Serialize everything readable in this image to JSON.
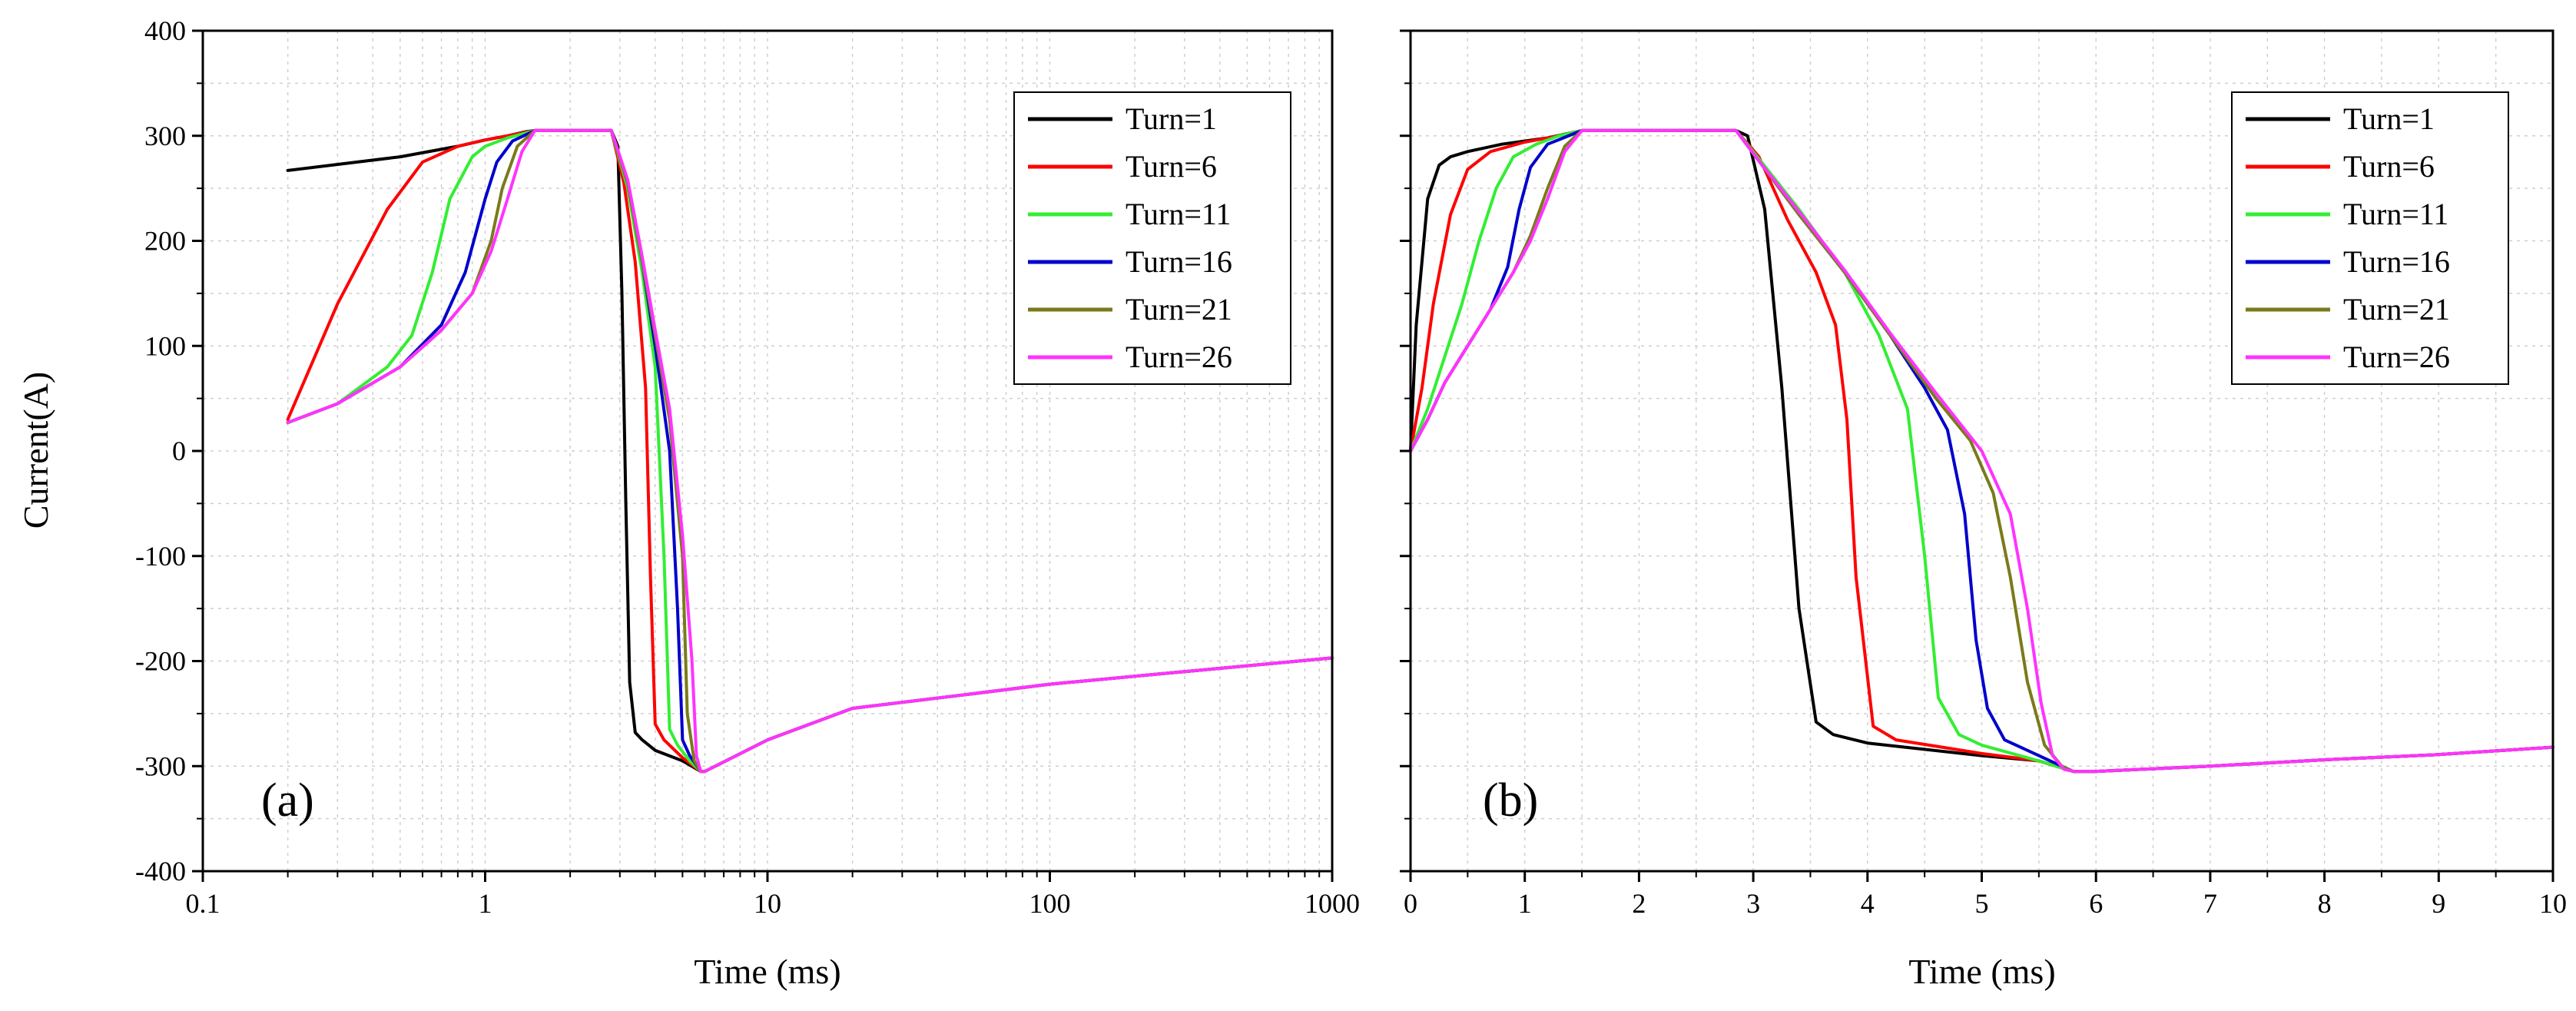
{
  "figure": {
    "ylabel": "Current(A)",
    "legend": [
      "Turn=1",
      "Turn=6",
      "Turn=11",
      "Turn=16",
      "Turn=21",
      "Turn=26"
    ],
    "colors": {
      "Turn=1": "#000000",
      "Turn=6": "#ff0000",
      "Turn=11": "#33ee33",
      "Turn=16": "#0000cc",
      "Turn=21": "#7a7a1a",
      "Turn=26": "#ff33ff"
    }
  },
  "chart_data": [
    {
      "type": "line",
      "panel_label": "(a)",
      "xlabel": "Time (ms)",
      "ylabel": "Current(A)",
      "xscale": "log",
      "xlim": [
        0.1,
        1000
      ],
      "ylim": [
        -400,
        400
      ],
      "xticks": [
        0.1,
        1,
        10,
        100,
        1000
      ],
      "xtick_labels": [
        "0.1",
        "1",
        "10",
        "100",
        "1000"
      ],
      "yticks": [
        400,
        300,
        200,
        100,
        0,
        -100,
        -200,
        -300,
        -400
      ],
      "ytick_labels": [
        "400",
        "300",
        "200",
        "100",
        "0",
        "-100",
        "-200",
        "-300",
        "-400"
      ],
      "grid": true,
      "legend_position": "top-right",
      "series": [
        {
          "name": "Turn=1",
          "color": "#000000",
          "x": [
            0.2,
            0.5,
            0.8,
            1,
            1.2,
            1.4,
            1.5,
            2,
            2.8,
            2.95,
            3.05,
            3.15,
            3.25,
            3.4,
            3.6,
            4,
            5,
            5.8,
            6,
            10,
            20,
            50,
            100,
            300,
            1000
          ],
          "y": [
            267,
            280,
            290,
            296,
            300,
            304,
            305,
            305,
            305,
            290,
            150,
            -50,
            -220,
            -268,
            -275,
            -285,
            -295,
            -305,
            -305,
            -275,
            -245,
            -232,
            -222,
            -210,
            -197
          ]
        },
        {
          "name": "Turn=6",
          "color": "#ff0000",
          "x": [
            0.2,
            0.3,
            0.45,
            0.6,
            0.8,
            1,
            1.2,
            1.5,
            2,
            2.8,
            3.1,
            3.4,
            3.7,
            3.85,
            4,
            4.3,
            5,
            5.8,
            6,
            10,
            20,
            50,
            100,
            300,
            1000
          ],
          "y": [
            30,
            140,
            230,
            275,
            290,
            296,
            300,
            305,
            305,
            305,
            255,
            180,
            60,
            -120,
            -260,
            -275,
            -292,
            -305,
            -305,
            -275,
            -245,
            -232,
            -222,
            -210,
            -197
          ]
        },
        {
          "name": "Turn=11",
          "color": "#33ee33",
          "x": [
            0.2,
            0.3,
            0.45,
            0.55,
            0.65,
            0.75,
            0.9,
            1,
            1.2,
            1.5,
            2,
            2.8,
            3.2,
            3.6,
            4,
            4.3,
            4.5,
            4.8,
            5.3,
            5.8,
            6,
            10,
            20,
            50,
            100,
            300,
            1000
          ],
          "y": [
            27,
            45,
            80,
            110,
            170,
            240,
            280,
            290,
            298,
            305,
            305,
            305,
            250,
            170,
            80,
            -100,
            -265,
            -280,
            -295,
            -305,
            -305,
            -275,
            -245,
            -232,
            -222,
            -210,
            -197
          ]
        },
        {
          "name": "Turn=16",
          "color": "#0000cc",
          "x": [
            0.2,
            0.3,
            0.5,
            0.7,
            0.85,
            1,
            1.1,
            1.25,
            1.5,
            2,
            2.8,
            3.2,
            3.6,
            4,
            4.5,
            4.8,
            5,
            5.3,
            5.8,
            6,
            10,
            20,
            50,
            100,
            300,
            1000
          ],
          "y": [
            27,
            45,
            80,
            120,
            170,
            240,
            275,
            295,
            305,
            305,
            305,
            255,
            180,
            100,
            0,
            -150,
            -275,
            -290,
            -305,
            -305,
            -275,
            -245,
            -232,
            -222,
            -210,
            -197
          ]
        },
        {
          "name": "Turn=21",
          "color": "#7a7a1a",
          "x": [
            0.2,
            0.3,
            0.5,
            0.7,
            0.9,
            1.05,
            1.15,
            1.3,
            1.5,
            2,
            2.8,
            3.2,
            3.6,
            4,
            4.5,
            5,
            5.2,
            5.5,
            5.8,
            6,
            10,
            20,
            50,
            100,
            300,
            1000
          ],
          "y": [
            27,
            45,
            80,
            115,
            150,
            200,
            250,
            290,
            305,
            305,
            305,
            255,
            180,
            110,
            30,
            -100,
            -250,
            -295,
            -305,
            -305,
            -275,
            -245,
            -232,
            -222,
            -210,
            -197
          ]
        },
        {
          "name": "Turn=26",
          "color": "#ff33ff",
          "x": [
            0.2,
            0.3,
            0.5,
            0.7,
            0.9,
            1.05,
            1.2,
            1.35,
            1.5,
            2,
            2.8,
            3.2,
            3.6,
            4,
            4.5,
            5,
            5.4,
            5.6,
            5.8,
            6,
            10,
            20,
            50,
            100,
            300,
            1000
          ],
          "y": [
            27,
            45,
            80,
            115,
            150,
            190,
            240,
            285,
            305,
            305,
            305,
            258,
            185,
            115,
            40,
            -80,
            -200,
            -290,
            -305,
            -305,
            -275,
            -245,
            -232,
            -222,
            -210,
            -197
          ]
        }
      ]
    },
    {
      "type": "line",
      "panel_label": "(b)",
      "xlabel": "Time (ms)",
      "ylabel": "",
      "xscale": "linear",
      "xlim": [
        0,
        10
      ],
      "ylim": [
        -400,
        400
      ],
      "xticks": [
        0,
        1,
        2,
        3,
        4,
        5,
        6,
        7,
        8,
        9,
        10
      ],
      "xtick_labels": [
        "0",
        "1",
        "2",
        "3",
        "4",
        "5",
        "6",
        "7",
        "8",
        "9",
        "10"
      ],
      "yticks": [
        400,
        300,
        200,
        100,
        0,
        -100,
        -200,
        -300,
        -400
      ],
      "ytick_labels": [],
      "grid": true,
      "legend_position": "top-right",
      "series": [
        {
          "name": "Turn=1",
          "color": "#000000",
          "x": [
            0,
            0.05,
            0.15,
            0.25,
            0.35,
            0.5,
            0.8,
            1.2,
            1.5,
            2,
            2.85,
            2.95,
            3.1,
            3.25,
            3.4,
            3.55,
            3.7,
            4,
            5,
            5.5,
            5.8,
            6,
            7,
            8,
            9,
            10
          ],
          "y": [
            0,
            120,
            240,
            272,
            280,
            285,
            292,
            298,
            305,
            305,
            305,
            300,
            230,
            60,
            -150,
            -258,
            -270,
            -278,
            -290,
            -295,
            -305,
            -305,
            -300,
            -294,
            -289,
            -282
          ]
        },
        {
          "name": "Turn=6",
          "color": "#ff0000",
          "x": [
            0,
            0.1,
            0.2,
            0.35,
            0.5,
            0.7,
            1,
            1.3,
            1.5,
            2,
            2.85,
            3.05,
            3.3,
            3.55,
            3.72,
            3.82,
            3.9,
            4.05,
            4.25,
            5,
            5.5,
            5.8,
            6,
            7,
            8,
            9,
            10
          ],
          "y": [
            0,
            60,
            140,
            225,
            268,
            285,
            294,
            300,
            305,
            305,
            305,
            280,
            220,
            170,
            120,
            30,
            -120,
            -262,
            -275,
            -288,
            -295,
            -305,
            -305,
            -300,
            -294,
            -289,
            -282
          ]
        },
        {
          "name": "Turn=11",
          "color": "#33ee33",
          "x": [
            0,
            0.15,
            0.3,
            0.45,
            0.6,
            0.75,
            0.9,
            1.1,
            1.3,
            1.5,
            2,
            2.85,
            3.05,
            3.4,
            3.8,
            4.1,
            4.35,
            4.5,
            4.62,
            4.8,
            5,
            5.5,
            5.8,
            6,
            7,
            8,
            9,
            10
          ],
          "y": [
            0,
            40,
            90,
            140,
            200,
            250,
            280,
            292,
            300,
            305,
            305,
            305,
            278,
            230,
            170,
            110,
            40,
            -100,
            -235,
            -270,
            -280,
            -295,
            -305,
            -305,
            -300,
            -294,
            -289,
            -282
          ]
        },
        {
          "name": "Turn=16",
          "color": "#0000cc",
          "x": [
            0,
            0.15,
            0.3,
            0.5,
            0.7,
            0.85,
            0.95,
            1.05,
            1.2,
            1.5,
            2,
            2.85,
            3.05,
            3.4,
            3.8,
            4.2,
            4.5,
            4.7,
            4.85,
            4.95,
            5.05,
            5.2,
            5.5,
            5.8,
            6,
            7,
            8,
            9,
            10
          ],
          "y": [
            0,
            30,
            65,
            100,
            135,
            175,
            230,
            270,
            292,
            305,
            305,
            305,
            276,
            225,
            170,
            110,
            60,
            20,
            -60,
            -180,
            -245,
            -275,
            -290,
            -305,
            -305,
            -300,
            -294,
            -289,
            -282
          ]
        },
        {
          "name": "Turn=21",
          "color": "#7a7a1a",
          "x": [
            0,
            0.15,
            0.3,
            0.5,
            0.7,
            0.9,
            1.05,
            1.2,
            1.35,
            1.5,
            2,
            2.85,
            3.05,
            3.4,
            3.8,
            4.2,
            4.6,
            4.9,
            5.1,
            5.25,
            5.4,
            5.55,
            5.7,
            5.8,
            6,
            7,
            8,
            9,
            10
          ],
          "y": [
            0,
            30,
            65,
            100,
            135,
            170,
            205,
            250,
            290,
            305,
            305,
            305,
            276,
            225,
            170,
            110,
            50,
            10,
            -40,
            -120,
            -220,
            -280,
            -300,
            -305,
            -305,
            -300,
            -294,
            -289,
            -282
          ]
        },
        {
          "name": "Turn=26",
          "color": "#ff33ff",
          "x": [
            0,
            0.15,
            0.3,
            0.5,
            0.7,
            0.9,
            1.05,
            1.2,
            1.35,
            1.5,
            2,
            2.85,
            3.05,
            3.4,
            3.8,
            4.2,
            4.6,
            5,
            5.25,
            5.4,
            5.52,
            5.62,
            5.72,
            5.8,
            6,
            7,
            8,
            9,
            10
          ],
          "y": [
            0,
            30,
            65,
            100,
            135,
            170,
            200,
            240,
            285,
            305,
            305,
            305,
            276,
            228,
            172,
            112,
            55,
            0,
            -60,
            -150,
            -240,
            -290,
            -303,
            -305,
            -305,
            -300,
            -294,
            -289,
            -282
          ]
        }
      ]
    }
  ]
}
